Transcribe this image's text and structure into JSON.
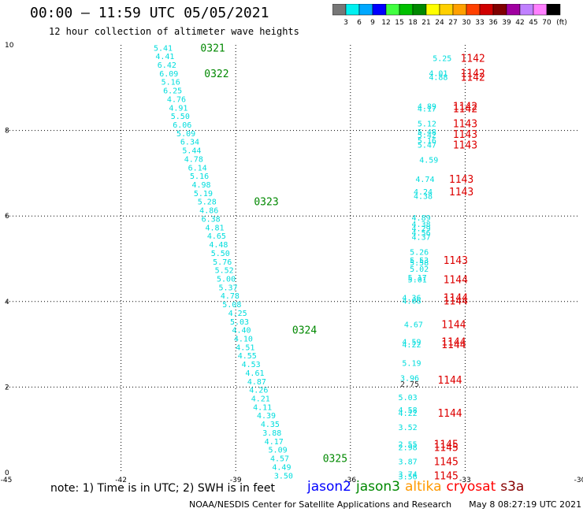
{
  "header": {
    "title": "00:00 – 11:59 UTC 05/05/2021",
    "subtitle": "12 hour collection of altimeter wave heights"
  },
  "colorbar": {
    "unit": "(ft)",
    "ticks": [
      "3",
      "6",
      "9",
      "12",
      "15",
      "18",
      "21",
      "24",
      "27",
      "30",
      "33",
      "36",
      "39",
      "42",
      "45",
      "70"
    ],
    "colors": [
      "#777777",
      "#00f0f0",
      "#00a8ff",
      "#0000ff",
      "#40ff40",
      "#00c000",
      "#008800",
      "#ffff00",
      "#ffd000",
      "#ffa000",
      "#ff4000",
      "#d00000",
      "#800000",
      "#a000a0",
      "#c080ff",
      "#ff80ff",
      "#000000"
    ]
  },
  "footer": {
    "note": "note: 1) Time is in UTC; 2) SWH is in feet",
    "credit": "NOAA/NESDIS Center for Satellite Applications and Research",
    "timestamp": "May 8 08:27:19 UTC 2021"
  },
  "legend": [
    {
      "name": "jason2",
      "color": "#0000ff"
    },
    {
      "name": "jason3",
      "color": "#008800"
    },
    {
      "name": "altika",
      "color": "#ff9900"
    },
    {
      "name": "cryosat",
      "color": "#ff0000"
    },
    {
      "name": "s3a",
      "color": "#880000"
    }
  ],
  "chart_data": {
    "type": "scatter",
    "xlim": [
      -45,
      -30
    ],
    "ylim": [
      0,
      10
    ],
    "x_ticks": [
      "-45",
      "-42",
      "-39",
      "-36",
      "-33",
      "-30"
    ],
    "y_ticks": [
      "0",
      "2",
      "4",
      "6",
      "8",
      "10"
    ],
    "grid": true,
    "series": [
      {
        "name": "jason3",
        "color_text": "#00dddd",
        "color_label": "#008800",
        "points": [
          {
            "x": -40.9,
            "y": 9.94,
            "v": "5.41"
          },
          {
            "x": -40.85,
            "y": 9.74,
            "v": "4.41"
          },
          {
            "x": -40.8,
            "y": 9.54,
            "v": "6.42"
          },
          {
            "x": -40.75,
            "y": 9.34,
            "v": "6.09"
          },
          {
            "x": -40.7,
            "y": 9.14,
            "v": "5.16"
          },
          {
            "x": -40.65,
            "y": 8.94,
            "v": "6.25"
          },
          {
            "x": -40.55,
            "y": 8.74,
            "v": "4.76"
          },
          {
            "x": -40.5,
            "y": 8.54,
            "v": "4.91"
          },
          {
            "x": -40.45,
            "y": 8.34,
            "v": "5.50"
          },
          {
            "x": -40.4,
            "y": 8.14,
            "v": "6.06"
          },
          {
            "x": -40.3,
            "y": 7.94,
            "v": "5.09"
          },
          {
            "x": -40.2,
            "y": 7.74,
            "v": "6.34"
          },
          {
            "x": -40.15,
            "y": 7.54,
            "v": "5.44"
          },
          {
            "x": -40.1,
            "y": 7.34,
            "v": "4.78"
          },
          {
            "x": -40.0,
            "y": 7.14,
            "v": "6.14"
          },
          {
            "x": -39.95,
            "y": 6.94,
            "v": "5.16"
          },
          {
            "x": -39.9,
            "y": 6.74,
            "v": "4.98"
          },
          {
            "x": -39.85,
            "y": 6.54,
            "v": "5.19"
          },
          {
            "x": -39.75,
            "y": 6.34,
            "v": "5.28"
          },
          {
            "x": -39.7,
            "y": 6.14,
            "v": "4.86"
          },
          {
            "x": -39.65,
            "y": 5.94,
            "v": "6.38"
          },
          {
            "x": -39.55,
            "y": 5.74,
            "v": "4.81"
          },
          {
            "x": -39.5,
            "y": 5.54,
            "v": "4.65"
          },
          {
            "x": -39.45,
            "y": 5.34,
            "v": "4.48"
          },
          {
            "x": -39.4,
            "y": 5.14,
            "v": "5.50"
          },
          {
            "x": -39.35,
            "y": 4.94,
            "v": "5.76"
          },
          {
            "x": -39.3,
            "y": 4.74,
            "v": "5.52"
          },
          {
            "x": -39.25,
            "y": 4.54,
            "v": "5.00"
          },
          {
            "x": -39.2,
            "y": 4.34,
            "v": "5.37"
          },
          {
            "x": -39.15,
            "y": 4.14,
            "v": "4.78"
          },
          {
            "x": -39.1,
            "y": 3.94,
            "v": "5.08"
          },
          {
            "x": -38.95,
            "y": 3.74,
            "v": "4.25"
          },
          {
            "x": -38.9,
            "y": 3.54,
            "v": "5.03"
          },
          {
            "x": -38.85,
            "y": 3.34,
            "v": "4.40"
          },
          {
            "x": -38.8,
            "y": 3.14,
            "v": "4.10"
          },
          {
            "x": -38.75,
            "y": 2.94,
            "v": "4.51"
          },
          {
            "x": -38.7,
            "y": 2.74,
            "v": "4.55"
          },
          {
            "x": -38.6,
            "y": 2.54,
            "v": "4.53"
          },
          {
            "x": -38.5,
            "y": 2.34,
            "v": "4.61"
          },
          {
            "x": -38.45,
            "y": 2.14,
            "v": "4.87"
          },
          {
            "x": -38.4,
            "y": 1.94,
            "v": "4.26"
          },
          {
            "x": -38.35,
            "y": 1.74,
            "v": "4.21"
          },
          {
            "x": -38.3,
            "y": 1.54,
            "v": "4.11"
          },
          {
            "x": -38.2,
            "y": 1.34,
            "v": "4.39"
          },
          {
            "x": -38.1,
            "y": 1.14,
            "v": "4.35"
          },
          {
            "x": -38.05,
            "y": 0.94,
            "v": "3.88"
          },
          {
            "x": -38.0,
            "y": 0.74,
            "v": "4.17"
          },
          {
            "x": -37.9,
            "y": 0.54,
            "v": "5.09"
          },
          {
            "x": -37.85,
            "y": 0.34,
            "v": "4.57"
          },
          {
            "x": -37.8,
            "y": 0.14,
            "v": "4.49"
          },
          {
            "x": -37.75,
            "y": -0.06,
            "v": "3.50"
          }
        ],
        "labels": [
          {
            "x": -39.6,
            "y": 9.94,
            "t": "0321"
          },
          {
            "x": -39.5,
            "y": 9.34,
            "t": "0322"
          },
          {
            "x": -38.2,
            "y": 6.34,
            "t": "0323"
          },
          {
            "x": -37.2,
            "y": 3.34,
            "t": "0324"
          },
          {
            "x": -36.4,
            "y": 0.34,
            "t": "0325"
          }
        ]
      },
      {
        "name": "cryosat",
        "color_text": "#00dddd",
        "color_label": "#dd0000",
        "points": [
          {
            "x": -33.6,
            "y": 9.7,
            "v": "5.25"
          },
          {
            "x": -33.7,
            "y": 9.35,
            "v": "4.01"
          },
          {
            "x": -33.7,
            "y": 9.25,
            "v": "4.88"
          },
          {
            "x": -34.0,
            "y": 8.57,
            "v": "4.89"
          },
          {
            "x": -34.0,
            "y": 8.52,
            "v": "4.17"
          },
          {
            "x": -34.0,
            "y": 8.17,
            "v": "5.12"
          },
          {
            "x": -34.0,
            "y": 7.97,
            "v": "5.48"
          },
          {
            "x": -34.0,
            "y": 7.9,
            "v": "5.42"
          },
          {
            "x": -34.0,
            "y": 7.77,
            "v": "5.16"
          },
          {
            "x": -34.0,
            "y": 7.67,
            "v": "5.47"
          },
          {
            "x": -33.95,
            "y": 7.32,
            "v": "4.59"
          },
          {
            "x": -34.05,
            "y": 6.87,
            "v": "4.74"
          },
          {
            "x": -34.1,
            "y": 6.57,
            "v": "4.24"
          },
          {
            "x": -34.1,
            "y": 6.47,
            "v": "4.38"
          },
          {
            "x": -34.15,
            "y": 5.97,
            "v": "4.89"
          },
          {
            "x": -34.15,
            "y": 5.82,
            "v": "4.38"
          },
          {
            "x": -34.15,
            "y": 5.72,
            "v": "4.29"
          },
          {
            "x": -34.15,
            "y": 5.62,
            "v": "4.56"
          },
          {
            "x": -34.15,
            "y": 5.52,
            "v": "4.37"
          },
          {
            "x": -34.2,
            "y": 5.17,
            "v": "5.26"
          },
          {
            "x": -34.2,
            "y": 4.97,
            "v": "5.53"
          },
          {
            "x": -34.2,
            "y": 4.92,
            "v": "5.58"
          },
          {
            "x": -34.2,
            "y": 4.77,
            "v": "5.02"
          },
          {
            "x": -34.25,
            "y": 4.57,
            "v": "5.17"
          },
          {
            "x": -34.25,
            "y": 4.52,
            "v": "5.01"
          },
          {
            "x": -34.4,
            "y": 4.1,
            "v": "4.36"
          },
          {
            "x": -34.4,
            "y": 4.02,
            "v": "4.06"
          },
          {
            "x": -34.35,
            "y": 3.47,
            "v": "4.67"
          },
          {
            "x": -34.4,
            "y": 3.07,
            "v": "4.59"
          },
          {
            "x": -34.4,
            "y": 3.0,
            "v": "4.22"
          },
          {
            "x": -34.4,
            "y": 2.57,
            "v": "5.19"
          },
          {
            "x": -34.45,
            "y": 2.22,
            "v": "3.96"
          },
          {
            "x": -34.45,
            "y": 2.08,
            "v": "2.75",
            "dark": true
          },
          {
            "x": -34.5,
            "y": 1.77,
            "v": "5.03"
          },
          {
            "x": -34.5,
            "y": 1.47,
            "v": "4.58"
          },
          {
            "x": -34.5,
            "y": 1.4,
            "v": "4.22"
          },
          {
            "x": -34.5,
            "y": 1.07,
            "v": "3.52"
          },
          {
            "x": -34.5,
            "y": 0.67,
            "v": "2.55"
          },
          {
            "x": -34.5,
            "y": 0.6,
            "v": "2.98"
          },
          {
            "x": -34.5,
            "y": 0.27,
            "v": "3.87"
          },
          {
            "x": -34.5,
            "y": -0.03,
            "v": "3.74"
          },
          {
            "x": -34.5,
            "y": -0.08,
            "v": "3.56"
          }
        ],
        "labels": [
          {
            "x": -32.8,
            "y": 9.7,
            "t": "1142"
          },
          {
            "x": -32.8,
            "y": 9.35,
            "t": "1142"
          },
          {
            "x": -32.8,
            "y": 9.25,
            "t": "1142"
          },
          {
            "x": -33.0,
            "y": 8.57,
            "t": "1142"
          },
          {
            "x": -33.0,
            "y": 8.52,
            "t": "1142"
          },
          {
            "x": -33.0,
            "y": 8.17,
            "t": "1143"
          },
          {
            "x": -33.0,
            "y": 7.92,
            "t": "1143"
          },
          {
            "x": -33.0,
            "y": 7.67,
            "t": "1143"
          },
          {
            "x": -33.1,
            "y": 6.87,
            "t": "1143"
          },
          {
            "x": -33.1,
            "y": 6.57,
            "t": "1143"
          },
          {
            "x": -33.25,
            "y": 4.97,
            "t": "1143"
          },
          {
            "x": -33.25,
            "y": 4.52,
            "t": "1144"
          },
          {
            "x": -33.25,
            "y": 4.1,
            "t": "1144"
          },
          {
            "x": -33.25,
            "y": 4.02,
            "t": "1144"
          },
          {
            "x": -33.3,
            "y": 3.47,
            "t": "1144"
          },
          {
            "x": -33.3,
            "y": 3.07,
            "t": "1144"
          },
          {
            "x": -33.3,
            "y": 3.0,
            "t": "1144"
          },
          {
            "x": -33.4,
            "y": 2.17,
            "t": "1144"
          },
          {
            "x": -33.4,
            "y": 1.4,
            "t": "1144"
          },
          {
            "x": -33.5,
            "y": 0.67,
            "t": "1145"
          },
          {
            "x": -33.5,
            "y": 0.6,
            "t": "1145"
          },
          {
            "x": -33.5,
            "y": 0.27,
            "t": "1145"
          },
          {
            "x": -33.5,
            "y": -0.06,
            "t": "1145"
          }
        ]
      }
    ]
  }
}
